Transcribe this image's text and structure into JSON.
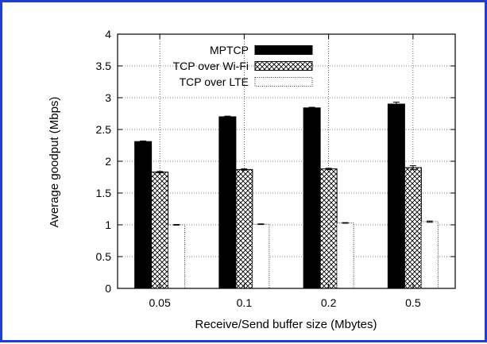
{
  "chart_data": {
    "type": "bar",
    "xlabel": "Receive/Send buffer size (Mbytes)",
    "ylabel": "Average goodput (Mbps)",
    "ylim": [
      0,
      4
    ],
    "yticks": [
      "0",
      "0.5",
      "1",
      "1.5",
      "2",
      "2.5",
      "3",
      "3.5",
      "4"
    ],
    "categories": [
      "0.05",
      "0.1",
      "0.2",
      "0.5"
    ],
    "legend_position": "top-right",
    "grid": true,
    "series": [
      {
        "name": "MPTCP",
        "fill": "solid-black",
        "values": [
          2.31,
          2.7,
          2.84,
          2.9
        ],
        "errors": [
          0.01,
          0.01,
          0.01,
          0.03
        ]
      },
      {
        "name": "TCP over Wi-Fi",
        "fill": "crosshatch",
        "values": [
          1.83,
          1.87,
          1.88,
          1.9
        ],
        "errors": [
          0.01,
          0.01,
          0.01,
          0.03
        ]
      },
      {
        "name": "TCP over LTE",
        "fill": "dotted-outline",
        "values": [
          1.0,
          1.01,
          1.03,
          1.05
        ],
        "errors": [
          0.005,
          0.005,
          0.005,
          0.01
        ]
      }
    ]
  },
  "colors": {
    "frame_border": "#1f3fd0",
    "bar_solid": "#000000",
    "background": "#ffffff"
  }
}
